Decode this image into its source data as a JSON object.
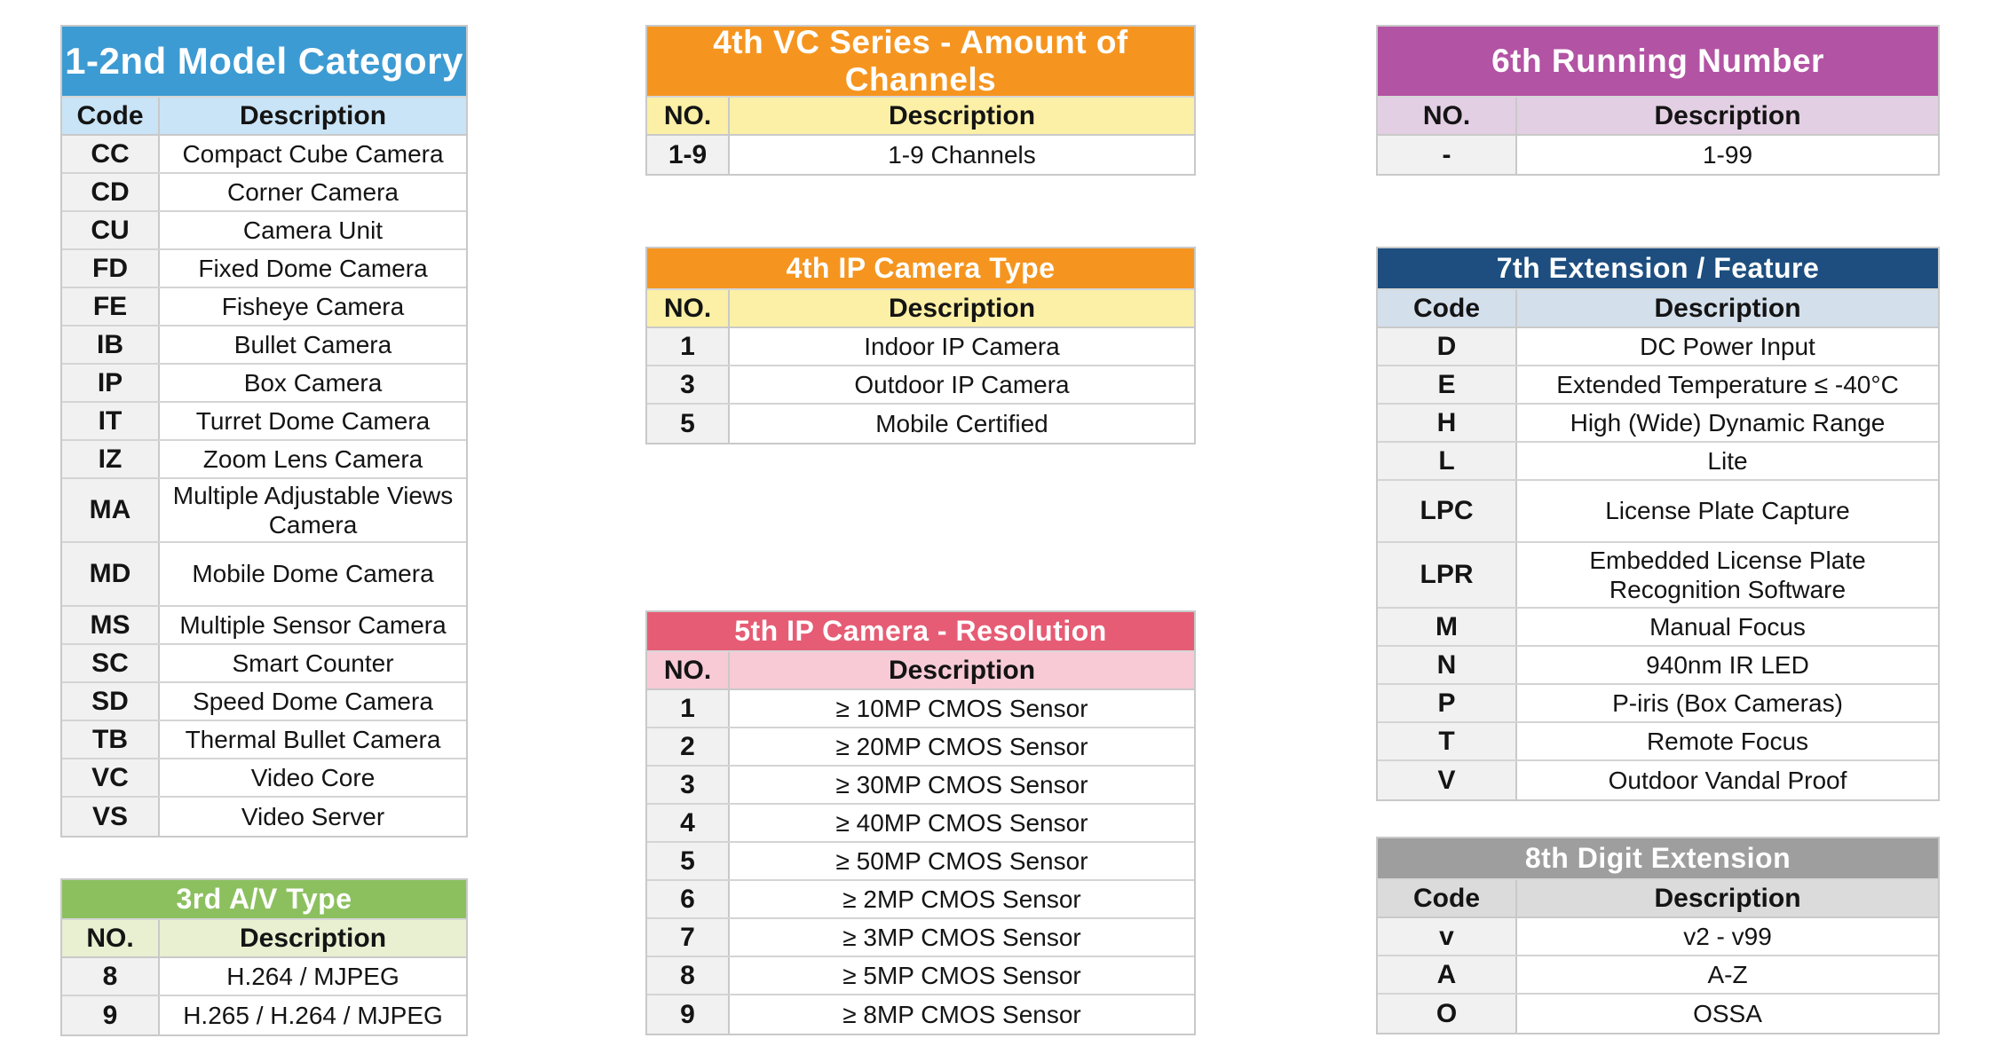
{
  "page": {
    "background": "#ffffff"
  },
  "tables": [
    {
      "id": "model-category",
      "title": "1-2nd Model Category",
      "columns": [
        "Code",
        "Description"
      ],
      "colors": {
        "header_bg": "#3D9BD3",
        "header_text": "#ffffff",
        "subheader_bg": "#C9E4F6"
      },
      "rows": [
        {
          "code": "CC",
          "description": "Compact Cube Camera"
        },
        {
          "code": "CD",
          "description": "Corner Camera"
        },
        {
          "code": "CU",
          "description": "Camera Unit"
        },
        {
          "code": "FD",
          "description": "Fixed Dome Camera"
        },
        {
          "code": "FE",
          "description": "Fisheye Camera"
        },
        {
          "code": "IB",
          "description": "Bullet Camera"
        },
        {
          "code": "IP",
          "description": "Box Camera"
        },
        {
          "code": "IT",
          "description": "Turret Dome Camera"
        },
        {
          "code": "IZ",
          "description": "Zoom Lens Camera"
        },
        {
          "code": "MA",
          "description": "Multiple Adjustable Views Camera"
        },
        {
          "code": "MD",
          "description": "Mobile Dome Camera"
        },
        {
          "code": "MS",
          "description": "Multiple Sensor Camera"
        },
        {
          "code": "SC",
          "description": "Smart Counter"
        },
        {
          "code": "SD",
          "description": "Speed Dome Camera"
        },
        {
          "code": "TB",
          "description": "Thermal Bullet Camera"
        },
        {
          "code": "VC",
          "description": "Video Core"
        },
        {
          "code": "VS",
          "description": "Video Server"
        }
      ]
    },
    {
      "id": "av-type",
      "title": "3rd A/V Type",
      "columns": [
        "NO.",
        "Description"
      ],
      "colors": {
        "header_bg": "#8CC05F",
        "header_text": "#ffffff",
        "subheader_bg": "#E9EFD1"
      },
      "rows": [
        {
          "code": "8",
          "description": "H.264 / MJPEG"
        },
        {
          "code": "9",
          "description": "H.265 / H.264 / MJPEG"
        }
      ]
    },
    {
      "id": "vc-channels",
      "title": "4th VC Series - Amount of Channels",
      "columns": [
        "NO.",
        "Description"
      ],
      "colors": {
        "header_bg": "#F5951F",
        "header_text": "#ffffff",
        "subheader_bg": "#FBF0A5"
      },
      "rows": [
        {
          "code": "1-9",
          "description": "1-9 Channels"
        }
      ]
    },
    {
      "id": "ip-camera-type",
      "title": "4th IP Camera Type",
      "columns": [
        "NO.",
        "Description"
      ],
      "colors": {
        "header_bg": "#F5951F",
        "header_text": "#ffffff",
        "subheader_bg": "#FBF0A5"
      },
      "rows": [
        {
          "code": "1",
          "description": "Indoor IP Camera"
        },
        {
          "code": "3",
          "description": "Outdoor IP Camera"
        },
        {
          "code": "5",
          "description": "Mobile Certified"
        }
      ]
    },
    {
      "id": "ip-resolution",
      "title": "5th IP Camera - Resolution",
      "columns": [
        "NO.",
        "Description"
      ],
      "colors": {
        "header_bg": "#E65C74",
        "header_text": "#ffffff",
        "subheader_bg": "#F7CAD6"
      },
      "rows": [
        {
          "code": "1",
          "description": "≥ 10MP CMOS Sensor"
        },
        {
          "code": "2",
          "description": "≥ 20MP CMOS Sensor"
        },
        {
          "code": "3",
          "description": "≥ 30MP CMOS Sensor"
        },
        {
          "code": "4",
          "description": "≥ 40MP CMOS Sensor"
        },
        {
          "code": "5",
          "description": "≥ 50MP CMOS Sensor"
        },
        {
          "code": "6",
          "description": "≥ 2MP CMOS Sensor"
        },
        {
          "code": "7",
          "description": "≥ 3MP CMOS Sensor"
        },
        {
          "code": "8",
          "description": "≥ 5MP CMOS Sensor"
        },
        {
          "code": "9",
          "description": "≥ 8MP CMOS Sensor"
        }
      ]
    },
    {
      "id": "running-number",
      "title": "6th Running Number",
      "columns": [
        "NO.",
        "Description"
      ],
      "colors": {
        "header_bg": "#B353A4",
        "header_text": "#ffffff",
        "subheader_bg": "#E3CFE3"
      },
      "rows": [
        {
          "code": "-",
          "description": "1-99"
        }
      ]
    },
    {
      "id": "extension-feature",
      "title": "7th Extension / Feature",
      "columns": [
        "Code",
        "Description"
      ],
      "colors": {
        "header_bg": "#1D4E7F",
        "header_text": "#ffffff",
        "subheader_bg": "#D4DFEC"
      },
      "rows": [
        {
          "code": "D",
          "description": "DC Power Input"
        },
        {
          "code": "E",
          "description": "Extended Temperature ≤ -40°C"
        },
        {
          "code": "H",
          "description": "High (Wide) Dynamic Range"
        },
        {
          "code": "L",
          "description": "Lite"
        },
        {
          "code": "LPC",
          "description": "License Plate Capture"
        },
        {
          "code": "LPR",
          "description": "Embedded License Plate Recognition Software"
        },
        {
          "code": "M",
          "description": "Manual Focus"
        },
        {
          "code": "N",
          "description": "940nm IR LED"
        },
        {
          "code": "P",
          "description": "P-iris (Box Cameras)"
        },
        {
          "code": "T",
          "description": "Remote Focus"
        },
        {
          "code": "V",
          "description": "Outdoor Vandal Proof"
        }
      ]
    },
    {
      "id": "digit-extension",
      "title": "8th Digit Extension",
      "columns": [
        "Code",
        "Description"
      ],
      "colors": {
        "header_bg": "#9E9E9E",
        "header_text": "#ffffff",
        "subheader_bg": "#DBDBDB"
      },
      "rows": [
        {
          "code": "v",
          "description": "v2 - v99"
        },
        {
          "code": "A",
          "description": "A-Z"
        },
        {
          "code": "O",
          "description": "OSSA"
        }
      ]
    }
  ]
}
